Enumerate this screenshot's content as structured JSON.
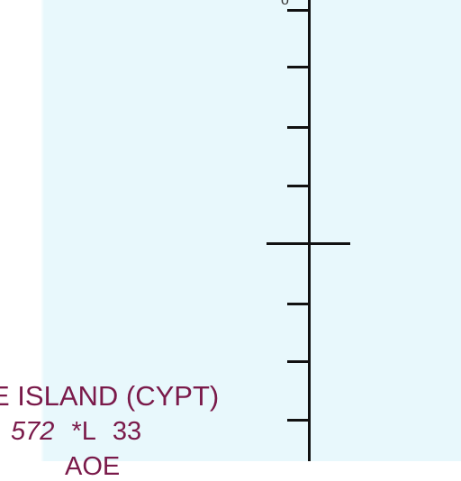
{
  "map": {
    "airport": {
      "name": "E ISLAND (CYPT)",
      "elevation": "572",
      "lighting": "*L",
      "runway_length": "33",
      "frequency_partial": "AOE"
    },
    "corner_glyph": "o",
    "colors": {
      "water": "#e8f8fc",
      "label": "#7a1a4a",
      "scale": "#111111"
    }
  }
}
